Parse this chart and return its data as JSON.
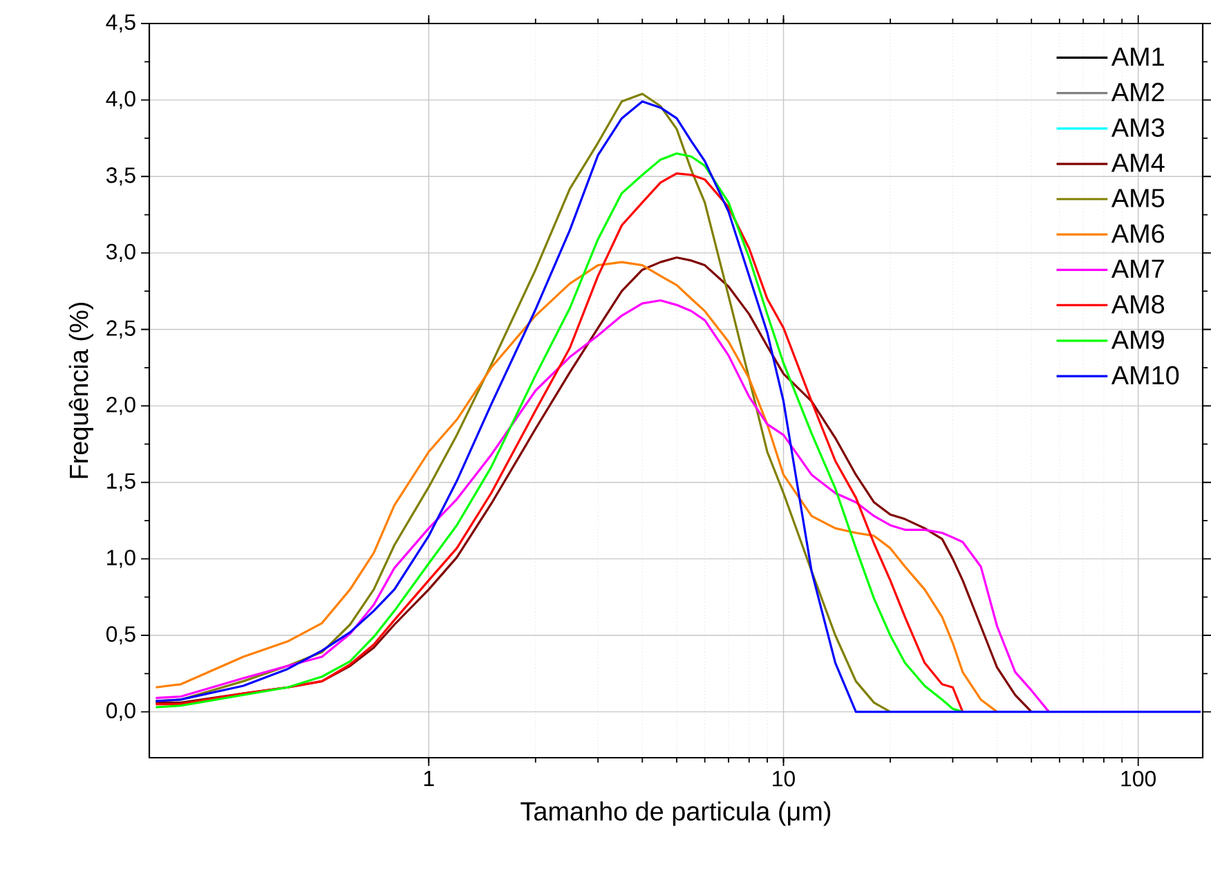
{
  "chart_data": {
    "type": "line",
    "xlabel": "Tamanho de particula (μm)",
    "ylabel": "Frequência (%)",
    "log": "x",
    "grid": true,
    "legend": "top right",
    "line_style": "solid",
    "marker": "none",
    "xlim": [
      0.163,
      152
    ],
    "ylim": [
      -0.3,
      4.5
    ],
    "xticks": [
      1,
      10,
      100
    ],
    "yticks": [
      {
        "value": 0,
        "label": "0,0"
      },
      {
        "value": 0.5,
        "label": "0,5"
      },
      {
        "value": 1,
        "label": "1,0"
      },
      {
        "value": 1.5,
        "label": "1,5"
      },
      {
        "value": 2,
        "label": "2,0"
      },
      {
        "value": 2.5,
        "label": "2,5"
      },
      {
        "value": 3,
        "label": "3,0"
      },
      {
        "value": 3.5,
        "label": "3,5"
      },
      {
        "value": 4,
        "label": "4,0"
      },
      {
        "value": 4.5,
        "label": "4,5"
      }
    ],
    "x": [
      0.17,
      0.2,
      0.3,
      0.4,
      0.5,
      0.6,
      0.7,
      0.8,
      1,
      1.2,
      1.5,
      2,
      2.5,
      3,
      3.5,
      4,
      4.5,
      5,
      5.5,
      6,
      7,
      8,
      9,
      10,
      12,
      14,
      16,
      18,
      20,
      22,
      25,
      28,
      30,
      32,
      36,
      40,
      45,
      50,
      56,
      100,
      150
    ],
    "series": [
      {
        "name": "AM1",
        "color": "#000000",
        "values": [
          null,
          null,
          null,
          null,
          null,
          null,
          null,
          null,
          null,
          null,
          null,
          null,
          null,
          null,
          null,
          null,
          null,
          null,
          null,
          null,
          null,
          null,
          null,
          null,
          null,
          null,
          null,
          null,
          null,
          null,
          null,
          null,
          null,
          null,
          null,
          null,
          null,
          null,
          null,
          null,
          null
        ]
      },
      {
        "name": "AM2",
        "color": "#808080",
        "values": [
          null,
          null,
          null,
          null,
          null,
          null,
          null,
          null,
          null,
          null,
          null,
          null,
          null,
          null,
          null,
          null,
          null,
          null,
          null,
          null,
          null,
          null,
          null,
          null,
          null,
          null,
          null,
          null,
          null,
          null,
          null,
          null,
          null,
          null,
          null,
          null,
          null,
          null,
          null,
          null,
          null
        ]
      },
      {
        "name": "AM3",
        "color": "#00ffff",
        "values": [
          null,
          null,
          null,
          null,
          null,
          null,
          null,
          null,
          null,
          null,
          null,
          null,
          null,
          null,
          null,
          null,
          null,
          null,
          null,
          null,
          null,
          null,
          null,
          null,
          null,
          null,
          null,
          null,
          null,
          null,
          null,
          null,
          null,
          null,
          null,
          null,
          null,
          null,
          null,
          null,
          null
        ]
      },
      {
        "name": "AM4",
        "color": "#800000",
        "values": [
          0.06,
          0.06,
          0.12,
          0.16,
          0.2,
          0.3,
          0.42,
          0.57,
          0.8,
          1.01,
          1.36,
          1.85,
          2.22,
          2.51,
          2.75,
          2.89,
          2.94,
          2.97,
          2.95,
          2.92,
          2.78,
          2.6,
          2.39,
          2.21,
          2.03,
          1.79,
          1.55,
          1.37,
          1.29,
          1.26,
          1.2,
          1.13,
          1.0,
          0.86,
          0.56,
          0.29,
          0.11,
          0,
          null,
          null,
          null
        ]
      },
      {
        "name": "AM5",
        "color": "#808000",
        "values": [
          0.07,
          0.08,
          0.2,
          0.3,
          0.39,
          0.57,
          0.8,
          1.09,
          1.47,
          1.81,
          2.27,
          2.89,
          3.42,
          3.72,
          3.99,
          4.04,
          3.96,
          3.81,
          3.54,
          3.33,
          2.72,
          2.18,
          1.7,
          1.43,
          0.92,
          0.5,
          0.2,
          0.06,
          0,
          null,
          null,
          null,
          null,
          null,
          null,
          null,
          null,
          null,
          null,
          null,
          null
        ]
      },
      {
        "name": "AM6",
        "color": "#ff8000",
        "values": [
          0.16,
          0.18,
          0.36,
          0.46,
          0.58,
          0.8,
          1.04,
          1.35,
          1.7,
          1.91,
          2.25,
          2.59,
          2.8,
          2.92,
          2.94,
          2.92,
          2.85,
          2.79,
          2.7,
          2.62,
          2.42,
          2.18,
          1.88,
          1.55,
          1.28,
          1.2,
          1.17,
          1.15,
          1.07,
          0.95,
          0.8,
          0.62,
          0.45,
          0.26,
          0.08,
          0,
          null,
          null,
          null,
          null,
          null
        ]
      },
      {
        "name": "AM7",
        "color": "#ff00ff",
        "values": [
          0.09,
          0.1,
          0.22,
          0.3,
          0.36,
          0.51,
          0.7,
          0.94,
          1.2,
          1.39,
          1.68,
          2.1,
          2.32,
          2.46,
          2.59,
          2.67,
          2.69,
          2.66,
          2.62,
          2.56,
          2.33,
          2.06,
          1.88,
          1.81,
          1.55,
          1.43,
          1.37,
          1.28,
          1.22,
          1.19,
          1.19,
          1.17,
          1.14,
          1.11,
          0.95,
          0.56,
          0.26,
          0.14,
          0,
          null,
          null
        ]
      },
      {
        "name": "AM8",
        "color": "#ff0000",
        "values": [
          0.05,
          0.05,
          0.12,
          0.16,
          0.2,
          0.31,
          0.44,
          0.6,
          0.86,
          1.07,
          1.43,
          1.97,
          2.38,
          2.85,
          3.18,
          3.33,
          3.46,
          3.52,
          3.51,
          3.48,
          3.3,
          3.03,
          2.7,
          2.51,
          2.03,
          1.64,
          1.4,
          1.1,
          0.86,
          0.62,
          0.32,
          0.18,
          0.16,
          0,
          null,
          null,
          null,
          null,
          null,
          null,
          null
        ]
      },
      {
        "name": "AM9",
        "color": "#00ff00",
        "values": [
          0.03,
          0.04,
          0.11,
          0.16,
          0.23,
          0.33,
          0.49,
          0.66,
          0.97,
          1.22,
          1.6,
          2.2,
          2.64,
          3.09,
          3.39,
          3.51,
          3.61,
          3.65,
          3.63,
          3.57,
          3.33,
          2.97,
          2.6,
          2.28,
          1.82,
          1.46,
          1.07,
          0.74,
          0.5,
          0.32,
          0.17,
          0.08,
          0.02,
          0,
          null,
          null,
          null,
          null,
          null,
          null,
          null
        ]
      },
      {
        "name": "AM10",
        "color": "#0000ff",
        "values": [
          0.07,
          0.08,
          0.17,
          0.28,
          0.4,
          0.52,
          0.66,
          0.8,
          1.15,
          1.51,
          2.01,
          2.63,
          3.15,
          3.64,
          3.88,
          3.99,
          3.95,
          3.88,
          3.73,
          3.6,
          3.27,
          2.85,
          2.48,
          2.03,
          0.92,
          0.32,
          0,
          0,
          0,
          0,
          0,
          0,
          0,
          0,
          0,
          0,
          0,
          0,
          0,
          0,
          0
        ]
      }
    ]
  }
}
